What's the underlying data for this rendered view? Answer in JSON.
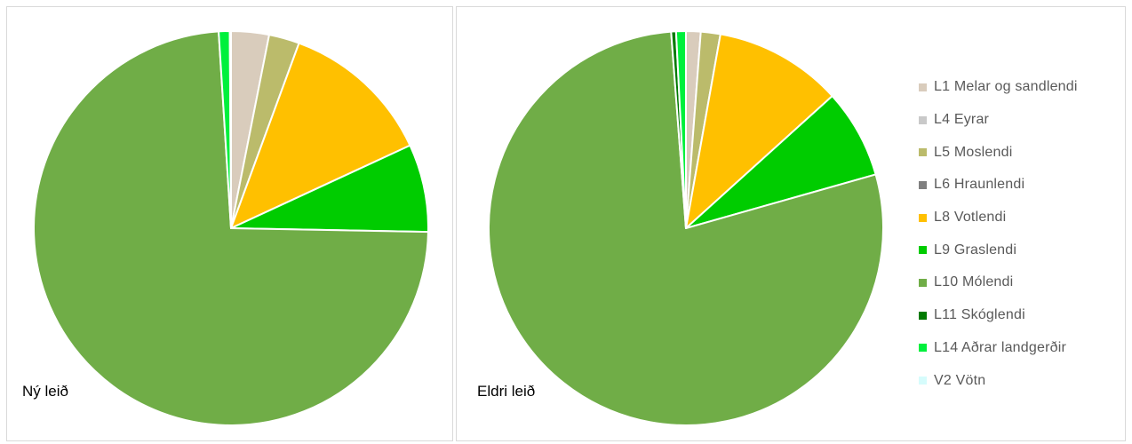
{
  "legend": [
    {
      "label": "L1 Melar og sandlendi",
      "color": "#d9ccbc"
    },
    {
      "label": "L4 Eyrar",
      "color": "#c9c9c9"
    },
    {
      "label": "L5 Moslendi",
      "color": "#bbbb6b"
    },
    {
      "label": "L6 Hraunlendi",
      "color": "#7f7f7f"
    },
    {
      "label": "L8 Votlendi",
      "color": "#ffc000"
    },
    {
      "label": "L9 Graslendi",
      "color": "#00cc00"
    },
    {
      "label": "L10 Mólendi",
      "color": "#70ad47"
    },
    {
      "label": "L11 Skóglendi",
      "color": "#007a00"
    },
    {
      "label": "L14 Aðrar landgerðir",
      "color": "#00f03c"
    },
    {
      "label": "V2 Vötn",
      "color": "#d6fcfc"
    }
  ],
  "chart_data": [
    {
      "type": "pie",
      "title": "Ný leið",
      "categories": [
        "L1 Melar og sandlendi",
        "L4 Eyrar",
        "L5 Moslendi",
        "L6 Hraunlendi",
        "L8 Votlendi",
        "L9 Graslendi",
        "L10 Mólendi",
        "L11 Skóglendi",
        "L14 Aðrar landgerðir",
        "V2 Vötn"
      ],
      "values": [
        3.1,
        0,
        2.5,
        0,
        12.5,
        7.2,
        73.7,
        0,
        0.9,
        0.1
      ],
      "colors": [
        "#d9ccbc",
        "#c9c9c9",
        "#bbbb6b",
        "#7f7f7f",
        "#ffc000",
        "#00cc00",
        "#70ad47",
        "#007a00",
        "#00f03c",
        "#d6fcfc"
      ]
    },
    {
      "type": "pie",
      "title": "Eldri leið",
      "categories": [
        "L1 Melar og sandlendi",
        "L4 Eyrar",
        "L5 Moslendi",
        "L6 Hraunlendi",
        "L8 Votlendi",
        "L9 Graslendi",
        "L10 Mólendi",
        "L11 Skóglendi",
        "L14 Aðrar landgerðir",
        "V2 Vötn"
      ],
      "values": [
        1.2,
        0,
        1.6,
        0,
        10.5,
        7.3,
        78.2,
        0.4,
        0.8,
        0
      ],
      "colors": [
        "#d9ccbc",
        "#c9c9c9",
        "#bbbb6b",
        "#7f7f7f",
        "#ffc000",
        "#00cc00",
        "#70ad47",
        "#007a00",
        "#00f03c",
        "#d6fcfc"
      ],
      "legend_position": "right"
    }
  ]
}
